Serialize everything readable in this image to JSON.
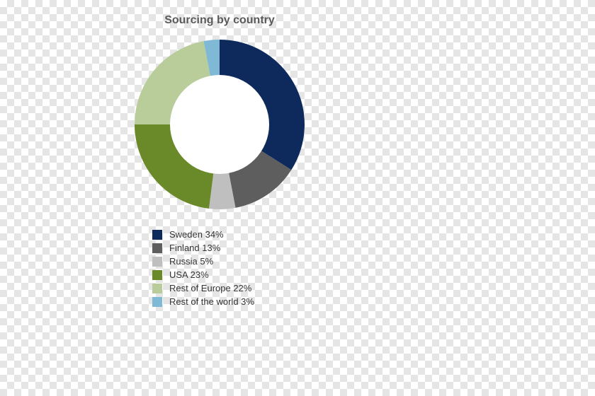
{
  "chart": {
    "type": "donut",
    "title": "Sourcing by country",
    "title_color": "#5a5a5a",
    "title_fontsize": 16,
    "title_fontweight": "bold",
    "outer_radius": 120,
    "inner_radius": 70,
    "center_fill": "#ffffff",
    "start_angle_deg": -90,
    "direction": "clockwise",
    "slices": [
      {
        "label": "Sweden",
        "value": 34,
        "color": "#0e2a5c"
      },
      {
        "label": "Finland",
        "value": 13,
        "color": "#5e5e5e"
      },
      {
        "label": "Russia",
        "value": 5,
        "color": "#bfbfbf"
      },
      {
        "label": "USA",
        "value": 23,
        "color": "#6a8a2a"
      },
      {
        "label": "Rest of Europe",
        "value": 22,
        "color": "#b8cd9a"
      },
      {
        "label": "Rest of the world",
        "value": 3,
        "color": "#7fb9d6"
      }
    ],
    "legend": {
      "swatch_size": 14,
      "fontsize": 13,
      "text_color": "#333333",
      "suffix": "%"
    }
  }
}
